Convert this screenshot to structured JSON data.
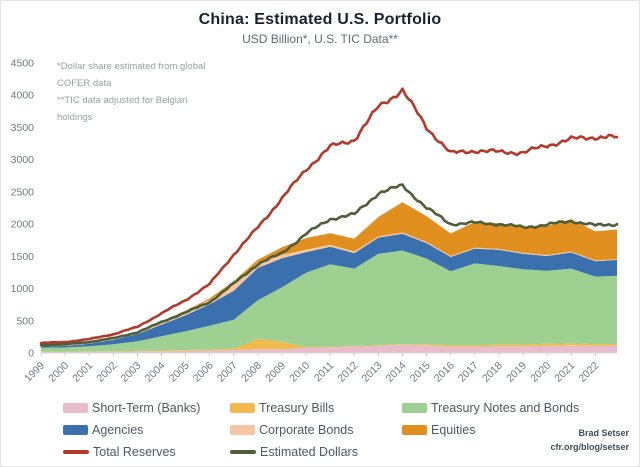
{
  "colors": {
    "short_term": "#e9bccb",
    "treasury_bills": "#f1ba4d",
    "notes_bonds": "#9ed191",
    "agencies": "#3a70ae",
    "corporate_bonds": "#f6c6a2",
    "equities": "#e18f1f",
    "total_reserves": "#b2392c",
    "estimated_dollars": "#4f5e38"
  },
  "footnotes": [
    "*Dollar share estimated from global COFER data",
    "**TIC data adjusted for Belgian holdings"
  ],
  "credit": {
    "author": "Brad Setser",
    "url": "cfr.org/blog/setser"
  },
  "legend": {
    "items": [
      {
        "label": "Short-Term (Banks)",
        "color_key": "short_term",
        "swatch": "area"
      },
      {
        "label": "Treasury Bills",
        "color_key": "treasury_bills",
        "swatch": "area"
      },
      {
        "label": "Treasury Notes and Bonds",
        "color_key": "notes_bonds",
        "swatch": "area"
      },
      {
        "label": "Agencies",
        "color_key": "agencies",
        "swatch": "area"
      },
      {
        "label": "Corporate Bonds",
        "color_key": "corporate_bonds",
        "swatch": "area"
      },
      {
        "label": "Equities",
        "color_key": "equities",
        "swatch": "area"
      },
      {
        "label": "Total Reserves",
        "color_key": "total_reserves",
        "swatch": "line"
      },
      {
        "label": "Estimated Dollars",
        "color_key": "estimated_dollars",
        "swatch": "line"
      }
    ]
  },
  "chart_data": {
    "type": "area",
    "title": "China: Estimated U.S. Portfolio",
    "subtitle": "USD Billion*, U.S. TIC Data**",
    "xlabel": "",
    "ylabel": "USD Billion",
    "ylim": [
      0,
      4500
    ],
    "ytick_step": 500,
    "grid": false,
    "legend_position": "bottom",
    "x_ticks": [
      1999,
      2000,
      2001,
      2002,
      2003,
      2004,
      2005,
      2006,
      2007,
      2008,
      2009,
      2010,
      2011,
      2012,
      2013,
      2014,
      2015,
      2016,
      2017,
      2018,
      2019,
      2020,
      2021,
      2022
    ],
    "x": [
      1999,
      2000,
      2001,
      2002,
      2003,
      2004,
      2005,
      2006,
      2007,
      2008,
      2009,
      2010,
      2011,
      2012,
      2013,
      2014,
      2015,
      2016,
      2017,
      2018,
      2019,
      2020,
      2021,
      2022,
      2022.9
    ],
    "stack_series": [
      {
        "name": "Short-Term (Banks)",
        "color_key": "short_term",
        "values": [
          15,
          15,
          18,
          20,
          25,
          30,
          35,
          40,
          45,
          60,
          60,
          80,
          90,
          100,
          110,
          130,
          120,
          100,
          100,
          105,
          105,
          110,
          120,
          110,
          115
        ]
      },
      {
        "name": "Treasury Bills",
        "color_key": "treasury_bills",
        "values": [
          5,
          5,
          6,
          6,
          8,
          10,
          12,
          15,
          20,
          160,
          110,
          15,
          8,
          10,
          10,
          10,
          15,
          20,
          20,
          25,
          25,
          35,
          30,
          25,
          25
        ]
      },
      {
        "name": "Treasury Notes and Bonds",
        "color_key": "notes_bonds",
        "values": [
          60,
          65,
          80,
          110,
          150,
          220,
          290,
          370,
          450,
          600,
          850,
          1150,
          1280,
          1200,
          1420,
          1450,
          1330,
          1150,
          1270,
          1220,
          1170,
          1130,
          1160,
          1050,
          1060
        ]
      },
      {
        "name": "Agencies",
        "color_key": "agencies",
        "values": [
          20,
          25,
          40,
          70,
          110,
          180,
          250,
          330,
          450,
          500,
          450,
          320,
          270,
          240,
          250,
          260,
          240,
          220,
          230,
          250,
          240,
          230,
          250,
          240,
          245
        ]
      },
      {
        "name": "Corporate Bonds",
        "color_key": "corporate_bonds",
        "values": [
          5,
          8,
          12,
          18,
          25,
          40,
          55,
          70,
          90,
          80,
          50,
          40,
          30,
          25,
          20,
          20,
          18,
          15,
          15,
          15,
          15,
          15,
          15,
          12,
          12
        ]
      },
      {
        "name": "Equities",
        "color_key": "equities",
        "values": [
          2,
          3,
          4,
          5,
          8,
          10,
          15,
          25,
          60,
          50,
          120,
          180,
          180,
          200,
          300,
          470,
          400,
          350,
          400,
          400,
          400,
          450,
          500,
          450,
          460
        ]
      }
    ],
    "line_series": [
      {
        "name": "Total Reserves",
        "color_key": "total_reserves",
        "values": [
          155,
          170,
          215,
          290,
          405,
          615,
          820,
          1070,
          1530,
          1950,
          2400,
          2850,
          3200,
          3310,
          3820,
          4080,
          3500,
          3100,
          3140,
          3120,
          3110,
          3220,
          3320,
          3350,
          3350
        ]
      },
      {
        "name": "Estimated Dollars",
        "color_key": "estimated_dollars",
        "values": [
          120,
          135,
          170,
          230,
          320,
          480,
          630,
          790,
          1080,
          1380,
          1550,
          1850,
          2080,
          2150,
          2480,
          2600,
          2250,
          2000,
          2020,
          2000,
          1950,
          1990,
          2050,
          1980,
          2000
        ]
      }
    ]
  }
}
